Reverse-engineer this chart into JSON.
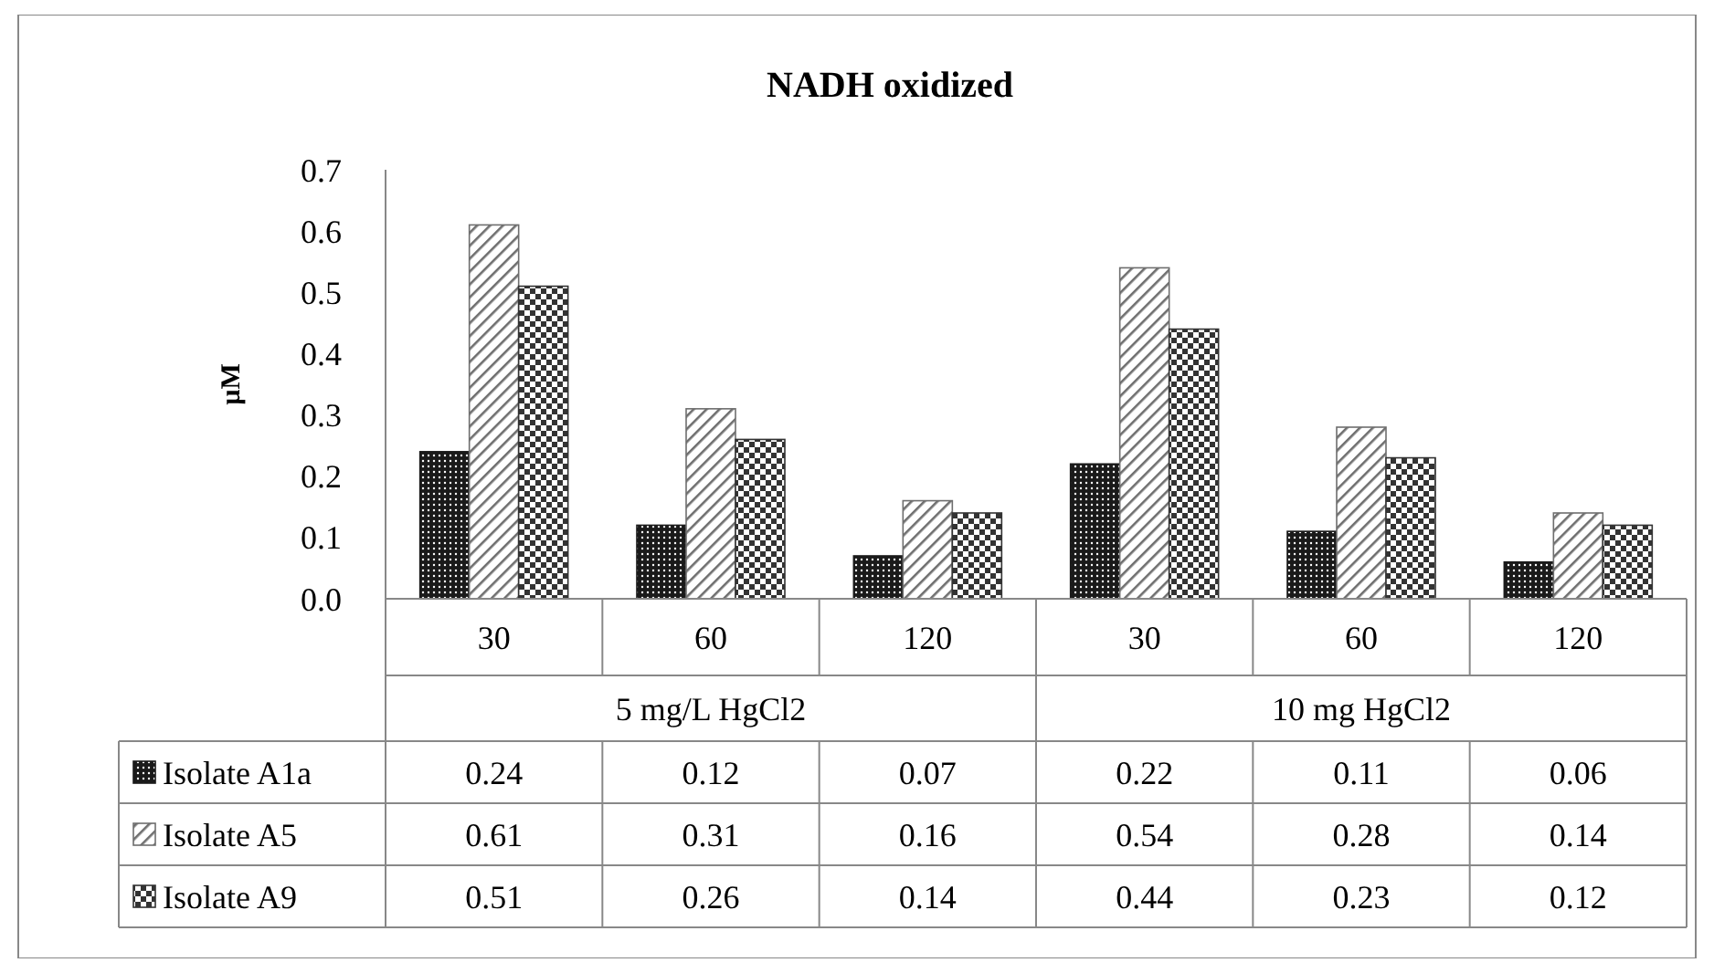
{
  "chart_data": {
    "type": "bar",
    "title": "NADH oxidized",
    "ylabel": "µM",
    "categories": [
      "30",
      "60",
      "120",
      "30",
      "60",
      "120"
    ],
    "annotations": [
      "5 mg/L HgCl2",
      "10 mg HgCl2"
    ],
    "series": [
      {
        "name": "Isolate A1a",
        "color": "#1a1a1a",
        "values": [
          0.24,
          0.12,
          0.07,
          0.22,
          0.11,
          0.06
        ]
      },
      {
        "name": "Isolate A5",
        "color": "#6e6e6e",
        "values": [
          0.61,
          0.31,
          0.16,
          0.54,
          0.28,
          0.14
        ]
      },
      {
        "name": "Isolate A9",
        "color": "#333333",
        "values": [
          0.51,
          0.26,
          0.14,
          0.44,
          0.23,
          0.12
        ]
      }
    ],
    "ylim": [
      0,
      0.7
    ],
    "yticks": [
      {
        "value": 0,
        "label": "0.0"
      },
      {
        "value": 0.1,
        "label": "0.1"
      },
      {
        "value": 0.2,
        "label": "0.2"
      },
      {
        "value": 0.3,
        "label": "0.3"
      },
      {
        "value": 0.4,
        "label": "0.4"
      },
      {
        "value": 0.5,
        "label": "0.5"
      },
      {
        "value": 0.6,
        "label": "0.6"
      },
      {
        "value": 0.7,
        "label": "0.7"
      }
    ],
    "data_labels": true,
    "legend": "bottom",
    "grid": false
  }
}
